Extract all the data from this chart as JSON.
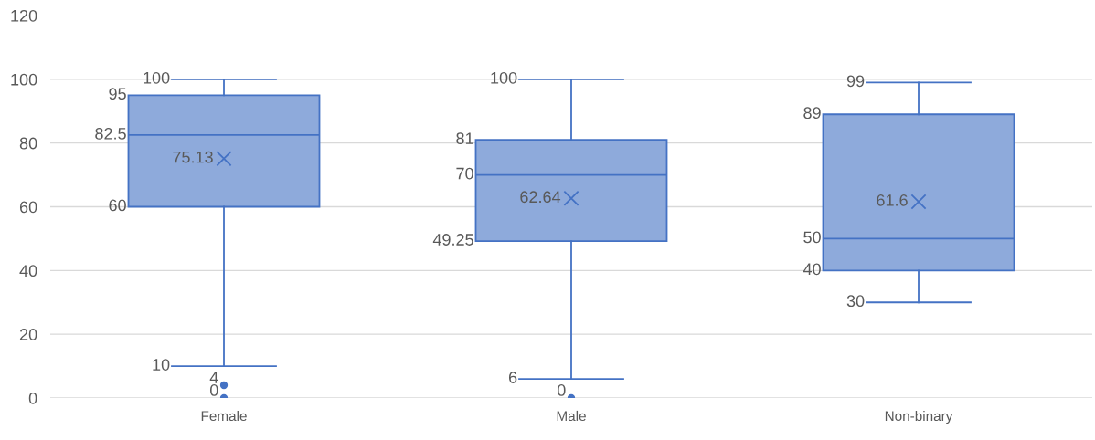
{
  "chart_data": {
    "type": "box",
    "categories": [
      "Female",
      "Male",
      "Non-binary"
    ],
    "boxes": [
      {
        "low": 10,
        "q1": 60,
        "median": 82.5,
        "q3": 95,
        "high": 100,
        "mean": 75.13,
        "outliers": [
          4,
          0
        ]
      },
      {
        "low": 6,
        "q1": 49.25,
        "median": 70,
        "q3": 81,
        "high": 100,
        "mean": 62.64,
        "outliers": [
          0
        ]
      },
      {
        "low": 30,
        "q1": 40,
        "median": 50,
        "q3": 89,
        "high": 99,
        "mean": 61.6
      }
    ],
    "annotations": [
      "100",
      "95",
      "82.5",
      "60",
      "10",
      "75.13",
      "4",
      "0",
      "100",
      "81",
      "70",
      "49.25",
      "6",
      "62.64",
      "0",
      "99",
      "89",
      "50",
      "40",
      "30",
      "61.6"
    ],
    "color": "#8eaadb",
    "ylim": [
      0,
      120
    ],
    "yticks": [
      0,
      20,
      40,
      60,
      80,
      100,
      120
    ],
    "grid": "y",
    "data_labels": true
  }
}
